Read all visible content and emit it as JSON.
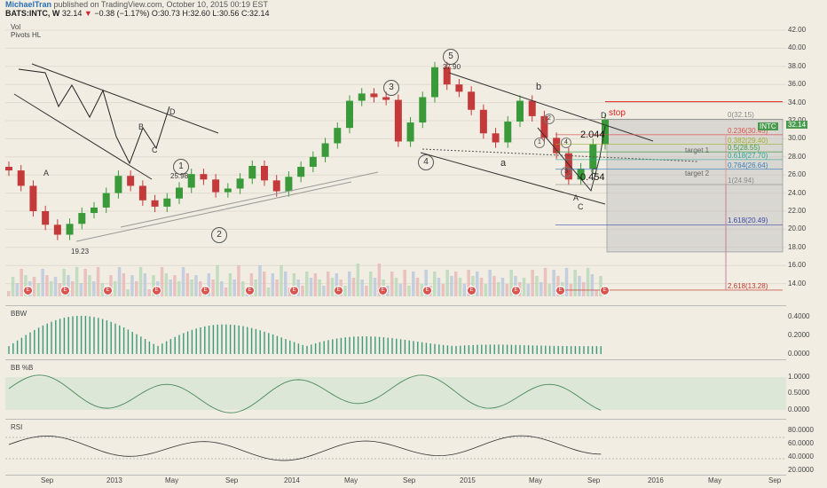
{
  "header": {
    "author": "MichaelTran",
    "published": "published on TradingView.com, October 10, 2015 00:19 EST",
    "symbol": "BATS:INTC, W",
    "last": "32.14",
    "change": "−0.38 (−1.17%)",
    "ohlc": "O:30.73 H:32.60 L:30.56 C:32.14"
  },
  "main": {
    "indicators": [
      "Vol",
      "Pivots HL"
    ],
    "price_ticks": [
      "42.00",
      "40.00",
      "38.00",
      "36.00",
      "34.00",
      "32.00",
      "30.00",
      "28.00",
      "26.00",
      "24.00",
      "22.00",
      "20.00",
      "18.00",
      "16.00",
      "14.00"
    ],
    "price_tag": "32.14",
    "symbol_tag": "INTC",
    "fib": [
      {
        "label": "0(32.15)",
        "color": "#888888"
      },
      {
        "label": "0.236(30.45)",
        "color": "#d9534f"
      },
      {
        "label": "0.382(29.40)",
        "color": "#9aaf2f"
      },
      {
        "label": "0.5(28.55)",
        "color": "#3c9a4a"
      },
      {
        "label": "0.618(27.70)",
        "color": "#2aa89a"
      },
      {
        "label": "0.764(26.64)",
        "color": "#3c7fb8"
      },
      {
        "label": "1(24.94)",
        "color": "#888888"
      },
      {
        "label": "1.618(20.49)",
        "color": "#3a48a8"
      },
      {
        "label": "2.618(13.28)",
        "color": "#c0392b"
      }
    ],
    "targets": [
      "target 1",
      "target 2"
    ],
    "annotations": {
      "stop": "stop",
      "ratio_a": "2.044",
      "ratio_b": "0.454",
      "high": "37.90",
      "low": "19.23",
      "w1_value": "25.98",
      "waves": [
        "1",
        "2",
        "3",
        "4",
        "5"
      ],
      "letters": [
        "A",
        "B",
        "C",
        "D",
        "a",
        "b",
        "A",
        "C",
        "C",
        "D"
      ],
      "small": [
        "1",
        "2",
        "3",
        "4"
      ]
    },
    "earnings_marker": "E"
  },
  "bbw": {
    "title": "BBW",
    "ticks": [
      "0.4000",
      "0.2000",
      "0.0000"
    ]
  },
  "bbpb": {
    "title": "BB %B",
    "ticks": [
      "1.0000",
      "0.5000",
      "0.0000"
    ]
  },
  "rsi": {
    "title": "RSI",
    "ticks": [
      "80.0000",
      "60.0000",
      "40.0000",
      "20.0000"
    ]
  },
  "time_axis": [
    "Sep",
    "2013",
    "May",
    "Sep",
    "2014",
    "May",
    "Sep",
    "2015",
    "May",
    "Sep",
    "2016",
    "May",
    "Sep"
  ],
  "chart_data": {
    "type": "candlestick",
    "ylim": [
      13,
      43
    ],
    "series": [
      {
        "name": "INTC",
        "values": [
          26.5,
          24.8,
          22.0,
          20.5,
          19.4,
          20.6,
          21.8,
          22.4,
          24.0,
          25.9,
          24.8,
          23.2,
          22.5,
          23.4,
          24.6,
          26.1,
          25.5,
          24.1,
          24.5,
          25.6,
          27.0,
          25.4,
          24.2,
          25.8,
          26.9,
          28.0,
          29.5,
          31.2,
          34.2,
          35.0,
          34.6,
          34.3,
          29.7,
          31.8,
          34.6,
          37.9,
          36.0,
          35.2,
          33.2,
          30.6,
          29.6,
          31.9,
          34.2,
          32.5,
          30.1,
          28.4,
          25.5,
          26.7,
          29.4,
          32.1
        ]
      }
    ],
    "fib_levels": [
      32.15,
      30.45,
      29.4,
      28.55,
      27.7,
      26.64,
      24.94,
      20.49,
      13.28
    ]
  }
}
